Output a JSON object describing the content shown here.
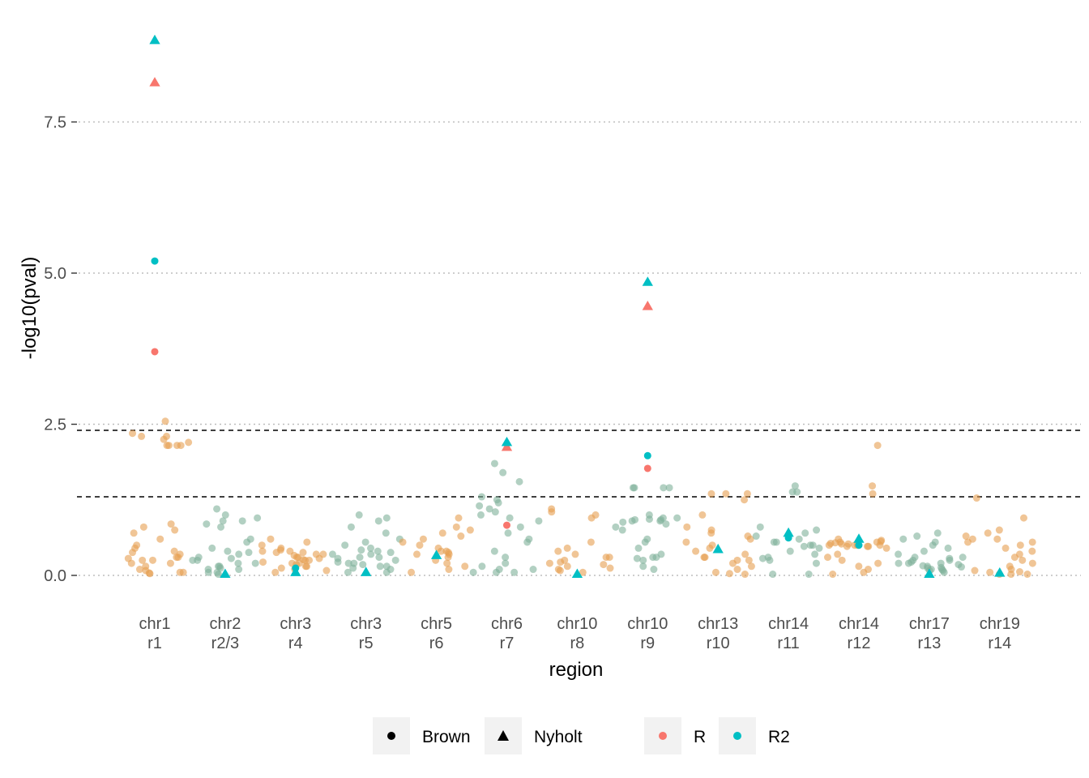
{
  "chart_data": {
    "type": "scatter",
    "title": "",
    "xlabel": "region",
    "ylabel": "-log10(pval)",
    "ylim": [
      -0.1,
      9.0
    ],
    "y_ticks": [
      "0.0",
      "2.5",
      "5.0",
      "7.5"
    ],
    "y_tick_values": [
      0,
      2.5,
      5.0,
      7.5
    ],
    "grid": "horizontal-major-dotted",
    "thresholds": [
      2.4,
      1.3
    ],
    "colors": {
      "orange": "#E69F50",
      "green": "#7FB09A",
      "R": "#F8766D",
      "R2": "#00BFC4",
      "grid": "#BDBDBD",
      "threshold": "#000000"
    },
    "categories": [
      {
        "line1": "chr1",
        "line2": "r1",
        "bg": "orange"
      },
      {
        "line1": "chr2",
        "line2": "r2/3",
        "bg": "green"
      },
      {
        "line1": "chr3",
        "line2": "r4",
        "bg": "orange"
      },
      {
        "line1": "chr3",
        "line2": "r5",
        "bg": "green"
      },
      {
        "line1": "chr5",
        "line2": "r6",
        "bg": "orange"
      },
      {
        "line1": "chr6",
        "line2": "r7",
        "bg": "green"
      },
      {
        "line1": "chr10",
        "line2": "r8",
        "bg": "orange"
      },
      {
        "line1": "chr10",
        "line2": "r9",
        "bg": "green"
      },
      {
        "line1": "chr13",
        "line2": "r10",
        "bg": "orange"
      },
      {
        "line1": "chr14",
        "line2": "r11",
        "bg": "green"
      },
      {
        "line1": "chr14",
        "line2": "r12",
        "bg": "orange"
      },
      {
        "line1": "chr17",
        "line2": "r13",
        "bg": "green"
      },
      {
        "line1": "chr19",
        "line2": "r14",
        "bg": "orange"
      }
    ],
    "highlight_points": [
      {
        "region": 0,
        "method": "Nyholt",
        "stat": "R2",
        "y": 8.85
      },
      {
        "region": 0,
        "method": "Nyholt",
        "stat": "R",
        "y": 8.15
      },
      {
        "region": 0,
        "method": "Brown",
        "stat": "R2",
        "y": 5.2
      },
      {
        "region": 0,
        "method": "Brown",
        "stat": "R",
        "y": 3.7
      },
      {
        "region": 1,
        "method": "Nyholt",
        "stat": "R2",
        "y": 0.02
      },
      {
        "region": 2,
        "method": "Nyholt",
        "stat": "R2",
        "y": 0.05
      },
      {
        "region": 2,
        "method": "Brown",
        "stat": "R2",
        "y": 0.12
      },
      {
        "region": 3,
        "method": "Nyholt",
        "stat": "R2",
        "y": 0.05
      },
      {
        "region": 4,
        "method": "Nyholt",
        "stat": "R2",
        "y": 0.33
      },
      {
        "region": 5,
        "method": "Nyholt",
        "stat": "R",
        "y": 2.12
      },
      {
        "region": 5,
        "method": "Nyholt",
        "stat": "R2",
        "y": 2.2
      },
      {
        "region": 5,
        "method": "Brown",
        "stat": "R",
        "y": 0.83
      },
      {
        "region": 6,
        "method": "Nyholt",
        "stat": "R2",
        "y": 0.02
      },
      {
        "region": 7,
        "method": "Nyholt",
        "stat": "R2",
        "y": 4.85
      },
      {
        "region": 7,
        "method": "Nyholt",
        "stat": "R",
        "y": 4.45
      },
      {
        "region": 7,
        "method": "Brown",
        "stat": "R2",
        "y": 1.98
      },
      {
        "region": 7,
        "method": "Brown",
        "stat": "R",
        "y": 1.77
      },
      {
        "region": 8,
        "method": "Nyholt",
        "stat": "R2",
        "y": 0.43
      },
      {
        "region": 9,
        "method": "Nyholt",
        "stat": "R2",
        "y": 0.7
      },
      {
        "region": 9,
        "method": "Brown",
        "stat": "R2",
        "y": 0.62
      },
      {
        "region": 10,
        "method": "Nyholt",
        "stat": "R2",
        "y": 0.6
      },
      {
        "region": 10,
        "method": "Brown",
        "stat": "R2",
        "y": 0.5
      },
      {
        "region": 11,
        "method": "Nyholt",
        "stat": "R2",
        "y": 0.02
      },
      {
        "region": 12,
        "method": "Nyholt",
        "stat": "R2",
        "y": 0.04
      }
    ],
    "background_points": {
      "0": [
        2.55,
        2.3,
        2.25,
        2.2,
        2.15,
        2.3,
        2.35,
        2.15,
        2.15,
        2.15,
        0.85,
        0.8,
        0.75,
        0.7,
        0.6,
        0.5,
        0.45,
        0.4,
        0.35,
        0.3,
        0.28,
        0.25,
        0.2,
        0.15,
        0.1,
        0.08,
        0.05,
        0.05,
        0.04,
        0.03,
        0.3,
        0.38,
        0.2,
        0.25
      ],
      "1": [
        1.1,
        1.0,
        0.95,
        0.9,
        0.9,
        0.85,
        0.8,
        0.6,
        0.55,
        0.45,
        0.4,
        0.38,
        0.35,
        0.3,
        0.28,
        0.25,
        0.2,
        0.15,
        0.1,
        0.05,
        0.05,
        0.02,
        0.15,
        0.2,
        0.12,
        0.25,
        0.1
      ],
      "2": [
        0.6,
        0.55,
        0.5,
        0.45,
        0.42,
        0.4,
        0.38,
        0.35,
        0.33,
        0.3,
        0.28,
        0.26,
        0.25,
        0.22,
        0.2,
        0.2,
        0.18,
        0.15,
        0.12,
        0.1,
        0.08,
        0.05,
        0.3,
        0.35,
        0.38,
        0.4,
        0.25,
        0.15
      ],
      "3": [
        1.0,
        0.95,
        0.9,
        0.8,
        0.7,
        0.6,
        0.55,
        0.5,
        0.45,
        0.4,
        0.38,
        0.35,
        0.3,
        0.28,
        0.25,
        0.22,
        0.2,
        0.18,
        0.15,
        0.12,
        0.1,
        0.05,
        0.05,
        0.3,
        0.42,
        0.35,
        0.2,
        0.15
      ],
      "4": [
        0.95,
        0.8,
        0.75,
        0.7,
        0.65,
        0.6,
        0.55,
        0.5,
        0.45,
        0.4,
        0.35,
        0.3,
        0.25,
        0.2,
        0.15,
        0.1,
        0.05,
        0.4,
        0.35,
        0.38
      ],
      "5": [
        1.7,
        1.85,
        1.55,
        1.25,
        1.2,
        1.1,
        1.05,
        1.0,
        0.95,
        0.9,
        0.8,
        0.7,
        0.6,
        0.55,
        0.4,
        0.3,
        0.2,
        0.15,
        0.1,
        0.05,
        0.05,
        0.05,
        0.1,
        1.15,
        1.3
      ],
      "6": [
        1.1,
        1.05,
        1.0,
        0.95,
        0.55,
        0.45,
        0.4,
        0.35,
        0.3,
        0.25,
        0.2,
        0.18,
        0.15,
        0.12,
        0.1,
        0.08,
        0.05,
        0.3,
        0.22
      ],
      "7": [
        1.45,
        1.45,
        1.45,
        1.45,
        1.0,
        0.95,
        0.93,
        0.92,
        0.9,
        0.9,
        0.88,
        0.85,
        0.8,
        0.75,
        0.6,
        0.55,
        0.45,
        0.35,
        0.3,
        0.3,
        0.28,
        0.25,
        0.15,
        0.1,
        0.92,
        0.95
      ],
      "8": [
        1.35,
        1.35,
        1.35,
        1.25,
        1.0,
        0.8,
        0.75,
        0.7,
        0.65,
        0.6,
        0.55,
        0.5,
        0.45,
        0.4,
        0.35,
        0.3,
        0.25,
        0.2,
        0.15,
        0.1,
        0.05,
        0.03,
        0.02,
        0.3,
        0.25
      ],
      "9": [
        1.48,
        1.38,
        1.38,
        0.8,
        0.75,
        0.7,
        0.65,
        0.6,
        0.55,
        0.5,
        0.48,
        0.45,
        0.4,
        0.35,
        0.3,
        0.28,
        0.25,
        0.2,
        0.02,
        0.02,
        0.55,
        0.5
      ],
      "10": [
        2.15,
        1.48,
        1.35,
        0.6,
        0.58,
        0.56,
        0.55,
        0.55,
        0.54,
        0.53,
        0.52,
        0.52,
        0.5,
        0.5,
        0.5,
        0.48,
        0.48,
        0.45,
        0.35,
        0.3,
        0.25,
        0.2,
        0.15,
        0.1,
        0.05,
        0.02,
        0.5,
        0.5,
        0.48
      ],
      "11": [
        0.7,
        0.65,
        0.6,
        0.55,
        0.5,
        0.45,
        0.4,
        0.35,
        0.3,
        0.28,
        0.25,
        0.22,
        0.2,
        0.2,
        0.18,
        0.16,
        0.15,
        0.14,
        0.13,
        0.12,
        0.1,
        0.1,
        0.08,
        0.08,
        0.05,
        0.3,
        0.25,
        0.2
      ],
      "12": [
        1.28,
        0.95,
        0.75,
        0.7,
        0.65,
        0.6,
        0.55,
        0.5,
        0.45,
        0.4,
        0.35,
        0.3,
        0.25,
        0.2,
        0.15,
        0.1,
        0.08,
        0.06,
        0.05,
        0.02,
        0.02,
        0.02,
        0.6,
        0.55
      ]
    },
    "legend": {
      "shape": [
        {
          "label": "Brown",
          "shape": "circle"
        },
        {
          "label": "Nyholt",
          "shape": "triangle"
        }
      ],
      "color": [
        {
          "label": "R",
          "color": "#F8766D"
        },
        {
          "label": "R2",
          "color": "#00BFC4"
        }
      ],
      "position": "bottom"
    }
  }
}
